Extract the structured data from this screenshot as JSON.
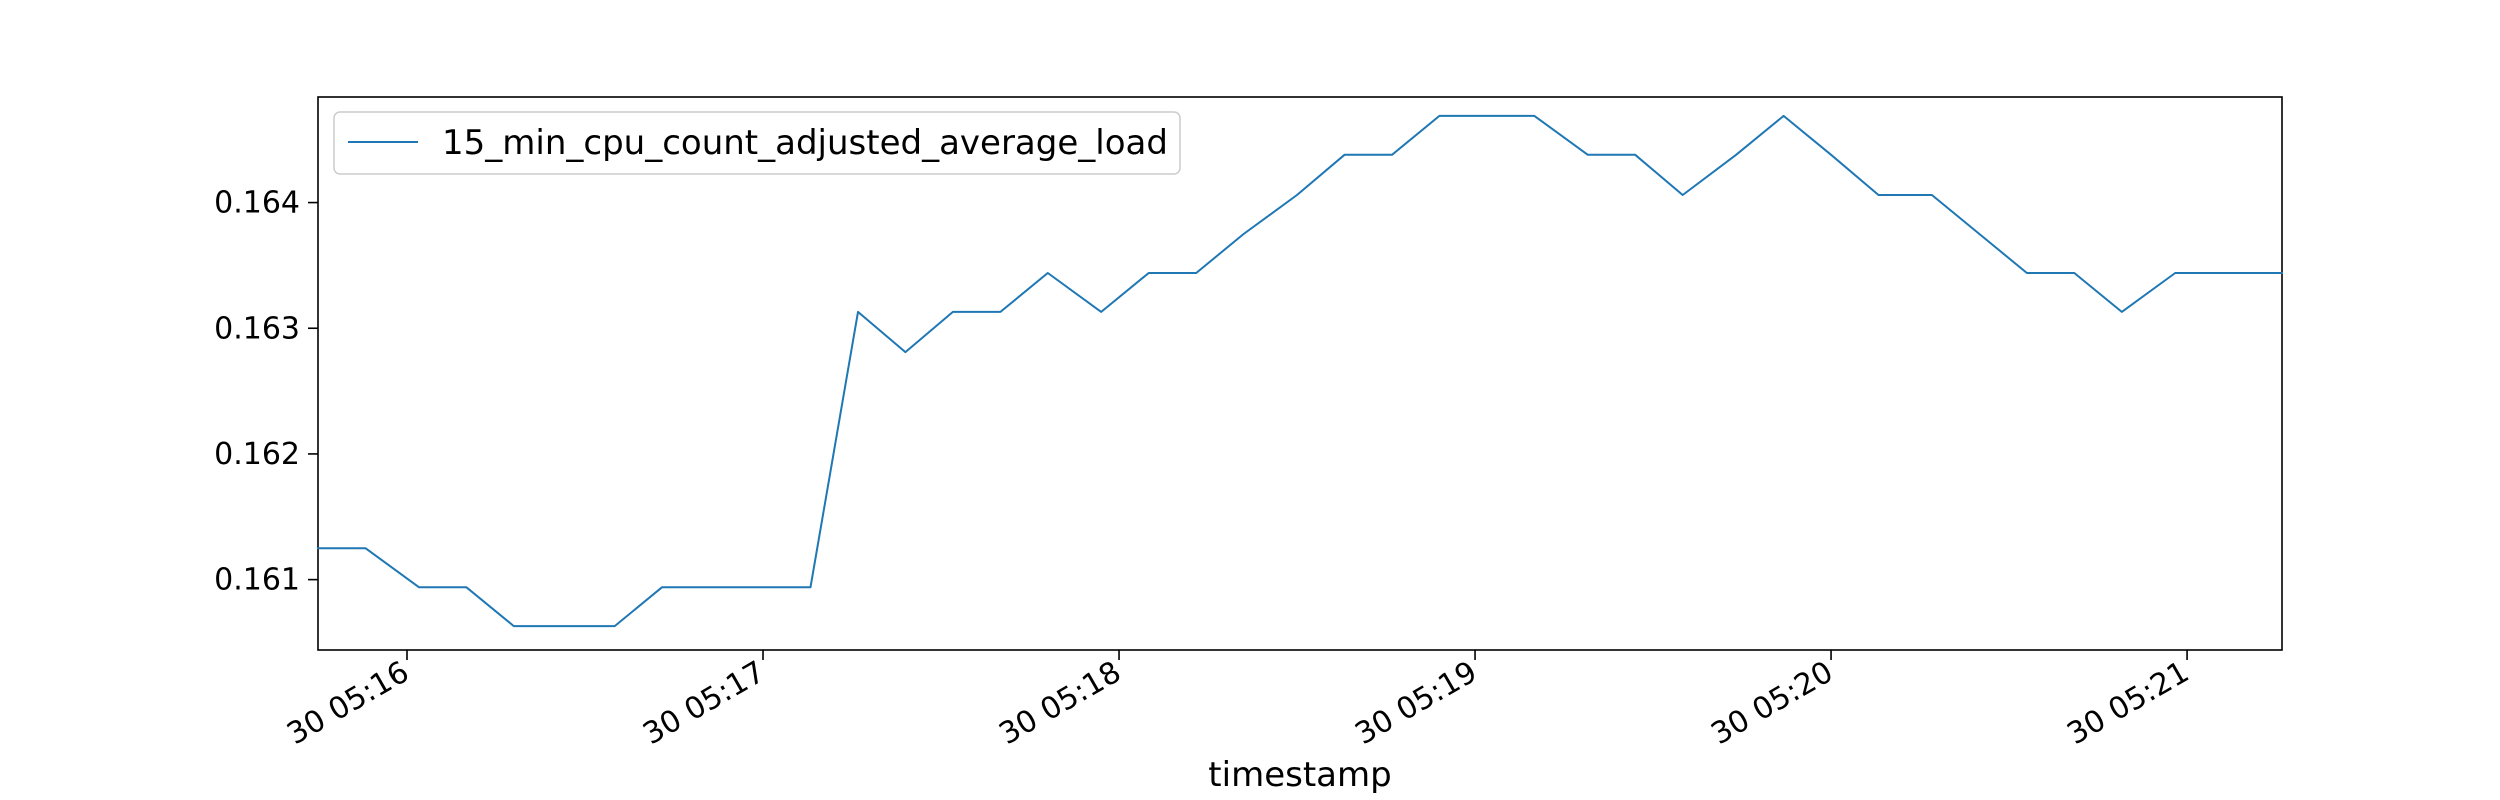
{
  "chart_data": {
    "type": "line",
    "title": "",
    "xlabel": "timestamp",
    "ylabel": "",
    "legend_position": "top-left",
    "grid": false,
    "x_ticks": [
      "30 05:16",
      "30 05:17",
      "30 05:18",
      "30 05:19",
      "30 05:20",
      "30 05:21"
    ],
    "y_ticks": [
      "0.161",
      "0.162",
      "0.163",
      "0.164"
    ],
    "xlim": [
      "05:15:45",
      "05:21:16"
    ],
    "ylim": [
      0.16044,
      0.16484
    ],
    "series": [
      {
        "name": "15_min_cpu_count_adjusted_average_load",
        "color": "#1f77b4",
        "x": [
          "05:15:45",
          "05:15:53",
          "05:16:02",
          "05:16:10",
          "05:16:18",
          "05:16:26",
          "05:16:35",
          "05:16:43",
          "05:16:51",
          "05:16:59",
          "05:17:08",
          "05:17:16",
          "05:17:24",
          "05:17:32",
          "05:17:40",
          "05:17:48",
          "05:17:57",
          "05:18:05",
          "05:18:13",
          "05:18:21",
          "05:18:30",
          "05:18:38",
          "05:18:46",
          "05:18:54",
          "05:19:02",
          "05:19:10",
          "05:19:19",
          "05:19:27",
          "05:19:35",
          "05:19:44",
          "05:19:52",
          "05:20:00",
          "05:20:08",
          "05:20:17",
          "05:20:25",
          "05:20:33",
          "05:20:41",
          "05:20:49",
          "05:20:58",
          "05:21:06",
          "05:21:16"
        ],
        "y": [
          0.16125,
          0.16125,
          0.16094,
          0.16094,
          0.16063,
          0.16063,
          0.16063,
          0.16094,
          0.16094,
          0.16094,
          0.16094,
          0.16313,
          0.16281,
          0.16313,
          0.16313,
          0.16344,
          0.16313,
          0.16344,
          0.16344,
          0.16375,
          0.16406,
          0.16438,
          0.16438,
          0.16469,
          0.16469,
          0.16469,
          0.16438,
          0.16438,
          0.16406,
          0.16438,
          0.16469,
          0.16438,
          0.16406,
          0.16406,
          0.16375,
          0.16344,
          0.16344,
          0.16313,
          0.16344,
          0.16344,
          0.16344
        ]
      }
    ]
  }
}
